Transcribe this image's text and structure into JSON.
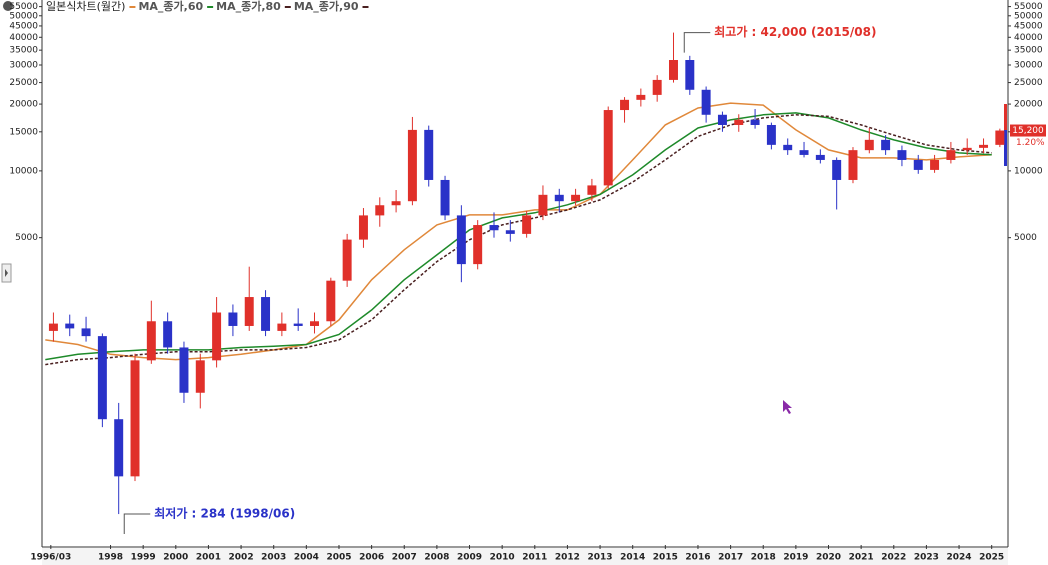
{
  "chart_data": {
    "type": "candlestick",
    "title": "일본식차트(월간)",
    "log_scale": true,
    "xlim": [
      1995.9,
      2025.5
    ],
    "xticks": [
      {
        "value": 1996.17,
        "label": "1996/03"
      },
      1998,
      1999,
      2000,
      2001,
      2002,
      2003,
      2004,
      2005,
      2006,
      2007,
      2008,
      2009,
      2010,
      2011,
      2012,
      2013,
      2014,
      2015,
      2016,
      2017,
      2018,
      2019,
      2020,
      2021,
      2022,
      2023,
      2024,
      2025
    ],
    "ylim": [
      206,
      58900
    ],
    "yticks": [
      5000,
      10000,
      15000,
      20000,
      25000,
      30000,
      35000,
      40000,
      45000,
      50000,
      55000
    ],
    "up_color": "#e0302a",
    "down_color": "#2a32c8",
    "x": [
      1996.25,
      1996.75,
      1997.25,
      1997.75,
      1998.25,
      1998.75,
      1999.25,
      1999.75,
      2000.25,
      2000.75,
      2001.25,
      2001.75,
      2002.25,
      2002.75,
      2003.25,
      2003.75,
      2004.25,
      2004.75,
      2005.25,
      2005.75,
      2006.25,
      2006.75,
      2007.25,
      2007.75,
      2008.25,
      2008.75,
      2009.25,
      2009.75,
      2010.25,
      2010.75,
      2011.25,
      2011.75,
      2012.25,
      2012.75,
      2013.25,
      2013.75,
      2014.25,
      2014.75,
      2015.25,
      2015.75,
      2016.25,
      2016.75,
      2017.25,
      2017.75,
      2018.25,
      2018.75,
      2019.25,
      2019.75,
      2020.25,
      2020.75,
      2021.25,
      2021.75,
      2022.25,
      2022.75,
      2023.25,
      2023.75,
      2024.25,
      2024.75,
      2025.25
    ],
    "open": [
      1900,
      2050,
      1950,
      1800,
      760,
      420,
      1400,
      2100,
      1600,
      1000,
      1400,
      2300,
      2000,
      2700,
      1900,
      2050,
      2000,
      2100,
      3200,
      4900,
      6300,
      7000,
      7300,
      15300,
      9100,
      6300,
      3800,
      5700,
      5400,
      5200,
      6300,
      7800,
      7300,
      7800,
      8600,
      18800,
      20900,
      22000,
      25700,
      31600,
      23200,
      17900,
      16100,
      17000,
      16100,
      13100,
      12400,
      11800,
      11200,
      9100,
      12400,
      13800,
      12400,
      11200,
      10100,
      11200,
      12400,
      12700,
      13100
    ],
    "high": [
      2300,
      2250,
      2200,
      1850,
      900,
      1500,
      2600,
      2300,
      1700,
      1500,
      2700,
      2500,
      3700,
      2900,
      2300,
      2400,
      2300,
      3300,
      5200,
      6800,
      7600,
      8200,
      17500,
      16000,
      9500,
      7000,
      6000,
      6500,
      6000,
      6600,
      8600,
      8300,
      8300,
      9200,
      19500,
      21500,
      23500,
      27000,
      42000,
      33000,
      24000,
      18500,
      18000,
      19000,
      16500,
      14000,
      13500,
      12500,
      11500,
      12800,
      15600,
      14500,
      13000,
      11800,
      11800,
      13500,
      14000,
      14000,
      15500
    ],
    "low": [
      1700,
      1800,
      1700,
      700,
      284,
      400,
      1350,
      1500,
      900,
      850,
      1300,
      1800,
      1900,
      1800,
      1800,
      1900,
      1850,
      2000,
      3000,
      4500,
      5600,
      6500,
      7000,
      8500,
      6000,
      3150,
      3600,
      5000,
      4800,
      5000,
      6000,
      6500,
      7000,
      7300,
      8300,
      16500,
      19500,
      20500,
      25000,
      22000,
      16500,
      15000,
      15000,
      15500,
      12500,
      11800,
      11500,
      10800,
      6700,
      8800,
      12000,
      11800,
      10500,
      9700,
      9800,
      10800,
      11800,
      12000,
      12800
    ],
    "close": [
      2050,
      1950,
      1800,
      760,
      420,
      1400,
      2100,
      1600,
      1000,
      1400,
      2300,
      2000,
      2700,
      1900,
      2050,
      2000,
      2100,
      3200,
      4900,
      6300,
      7000,
      7300,
      15300,
      9100,
      6300,
      3800,
      5700,
      5400,
      5200,
      6300,
      7800,
      7300,
      7800,
      8600,
      18800,
      20900,
      22000,
      25700,
      31600,
      23200,
      17900,
      16100,
      17000,
      16100,
      13100,
      12400,
      11800,
      11200,
      9100,
      12400,
      13800,
      12400,
      11200,
      10100,
      11200,
      12400,
      12700,
      13100,
      15200
    ],
    "series": [
      {
        "name": "MA_종가,60",
        "color": "#e0883a",
        "style": "solid",
        "x": [
          1996,
          1997,
          1998,
          1999,
          2000,
          2001,
          2002,
          2003,
          2004,
          2005,
          2006,
          2007,
          2008,
          2009,
          2010,
          2011,
          2012,
          2013,
          2014,
          2015,
          2016,
          2017,
          2018,
          2019,
          2020,
          2021,
          2022,
          2023,
          2024,
          2025
        ],
        "values": [
          1730,
          1650,
          1490,
          1440,
          1410,
          1440,
          1490,
          1560,
          1650,
          2130,
          3230,
          4410,
          5710,
          6330,
          6330,
          6670,
          6670,
          7830,
          11210,
          16110,
          19200,
          20200,
          19800,
          15300,
          12430,
          11440,
          11440,
          11210,
          11560,
          11810
        ]
      },
      {
        "name": "MA_종가,80",
        "color": "#1e8a2a",
        "style": "solid",
        "x": [
          1996,
          1997,
          1998,
          1999,
          2000,
          2001,
          2002,
          2003,
          2004,
          2005,
          2006,
          2007,
          2008,
          2009,
          2010,
          2011,
          2012,
          2013,
          2014,
          2015,
          2016,
          2017,
          2018,
          2019,
          2020,
          2021,
          2022,
          2023,
          2024,
          2025
        ],
        "values": [
          1410,
          1490,
          1530,
          1560,
          1560,
          1560,
          1600,
          1620,
          1650,
          1830,
          2360,
          3230,
          4180,
          5420,
          6140,
          6470,
          7030,
          7830,
          9590,
          12430,
          15610,
          16970,
          17900,
          18250,
          17330,
          15300,
          13790,
          12690,
          12050,
          11810
        ]
      },
      {
        "name": "MA_종가,90",
        "color": "#4a2020",
        "style": "dashed",
        "x": [
          1996,
          1997,
          1998,
          1999,
          2000,
          2001,
          2002,
          2003,
          2004,
          2005,
          2006,
          2007,
          2008,
          2009,
          2010,
          2011,
          2012,
          2013,
          2014,
          2015,
          2016,
          2017,
          2018,
          2019,
          2020,
          2021,
          2022,
          2023,
          2024,
          2025
        ],
        "values": [
          1340,
          1410,
          1440,
          1490,
          1530,
          1530,
          1560,
          1560,
          1600,
          1730,
          2130,
          2910,
          3900,
          4890,
          5710,
          6140,
          6670,
          7400,
          8900,
          11210,
          14300,
          16110,
          17330,
          17900,
          17600,
          16110,
          14500,
          13090,
          12430,
          12050
        ]
      }
    ],
    "annotations": [
      {
        "text": "최고가 : 42,000 (2015/08)",
        "x": 2015.58,
        "value": 42000,
        "color": "#e0302a"
      },
      {
        "text": "최저가 : 284 (1998/06)",
        "x": 1998.42,
        "value": 284,
        "color": "#2a32c8"
      }
    ],
    "last_price": {
      "value": 15200,
      "label": "15,200"
    },
    "change": {
      "value": 1.2,
      "label": "1.20%"
    }
  }
}
